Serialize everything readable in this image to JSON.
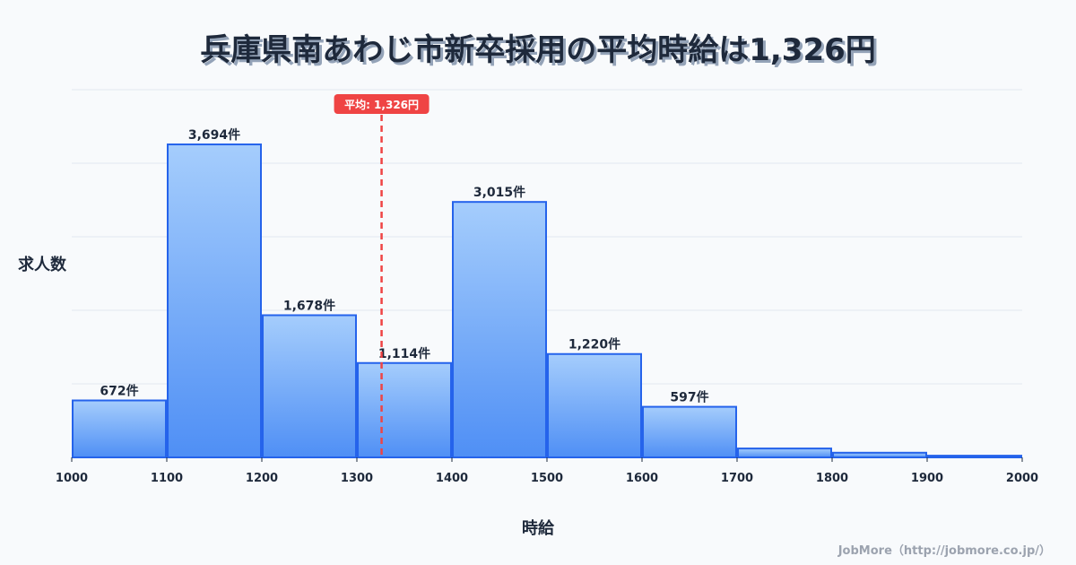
{
  "title": "兵庫県南あわじ市新卒採用の平均時給は1,326円",
  "y_axis_label": "求人数",
  "x_axis_label": "時給",
  "credit": "JobMore（http://jobmore.co.jp/）",
  "average_badge": "平均: 1,326円",
  "colors": {
    "bar_top": "#a5cdfc",
    "bar_bottom": "#4f8ff5",
    "bar_border": "#2563eb",
    "avg_line": "#ef4444",
    "grid": "#e2e8f0",
    "text": "#1e293b"
  },
  "chart_data": {
    "type": "bar",
    "title": "兵庫県南あわじ市新卒採用の平均時給は1,326円",
    "xlabel": "時給",
    "ylabel": "求人数",
    "categories": [
      "1000-1100",
      "1100-1200",
      "1200-1300",
      "1300-1400",
      "1400-1500",
      "1500-1600",
      "1600-1700",
      "1700-1800",
      "1800-1900",
      "1900-2000"
    ],
    "bin_edges": [
      1000,
      1100,
      1200,
      1300,
      1400,
      1500,
      1600,
      1700,
      1800,
      1900,
      2000
    ],
    "values": [
      672,
      3694,
      1678,
      1114,
      3015,
      1220,
      597,
      105,
      55,
      20
    ],
    "value_labels": [
      "672件",
      "3,694件",
      "1,678件",
      "1,114件",
      "3,015件",
      "1,220件",
      "597件",
      "",
      "",
      ""
    ],
    "x_ticks": [
      "1000",
      "1100",
      "1200",
      "1300",
      "1400",
      "1500",
      "1600",
      "1700",
      "1800",
      "1900",
      "2000"
    ],
    "average": 1326,
    "average_label": "平均: 1,326円",
    "grid": true,
    "ylim": [
      0,
      4340
    ]
  }
}
